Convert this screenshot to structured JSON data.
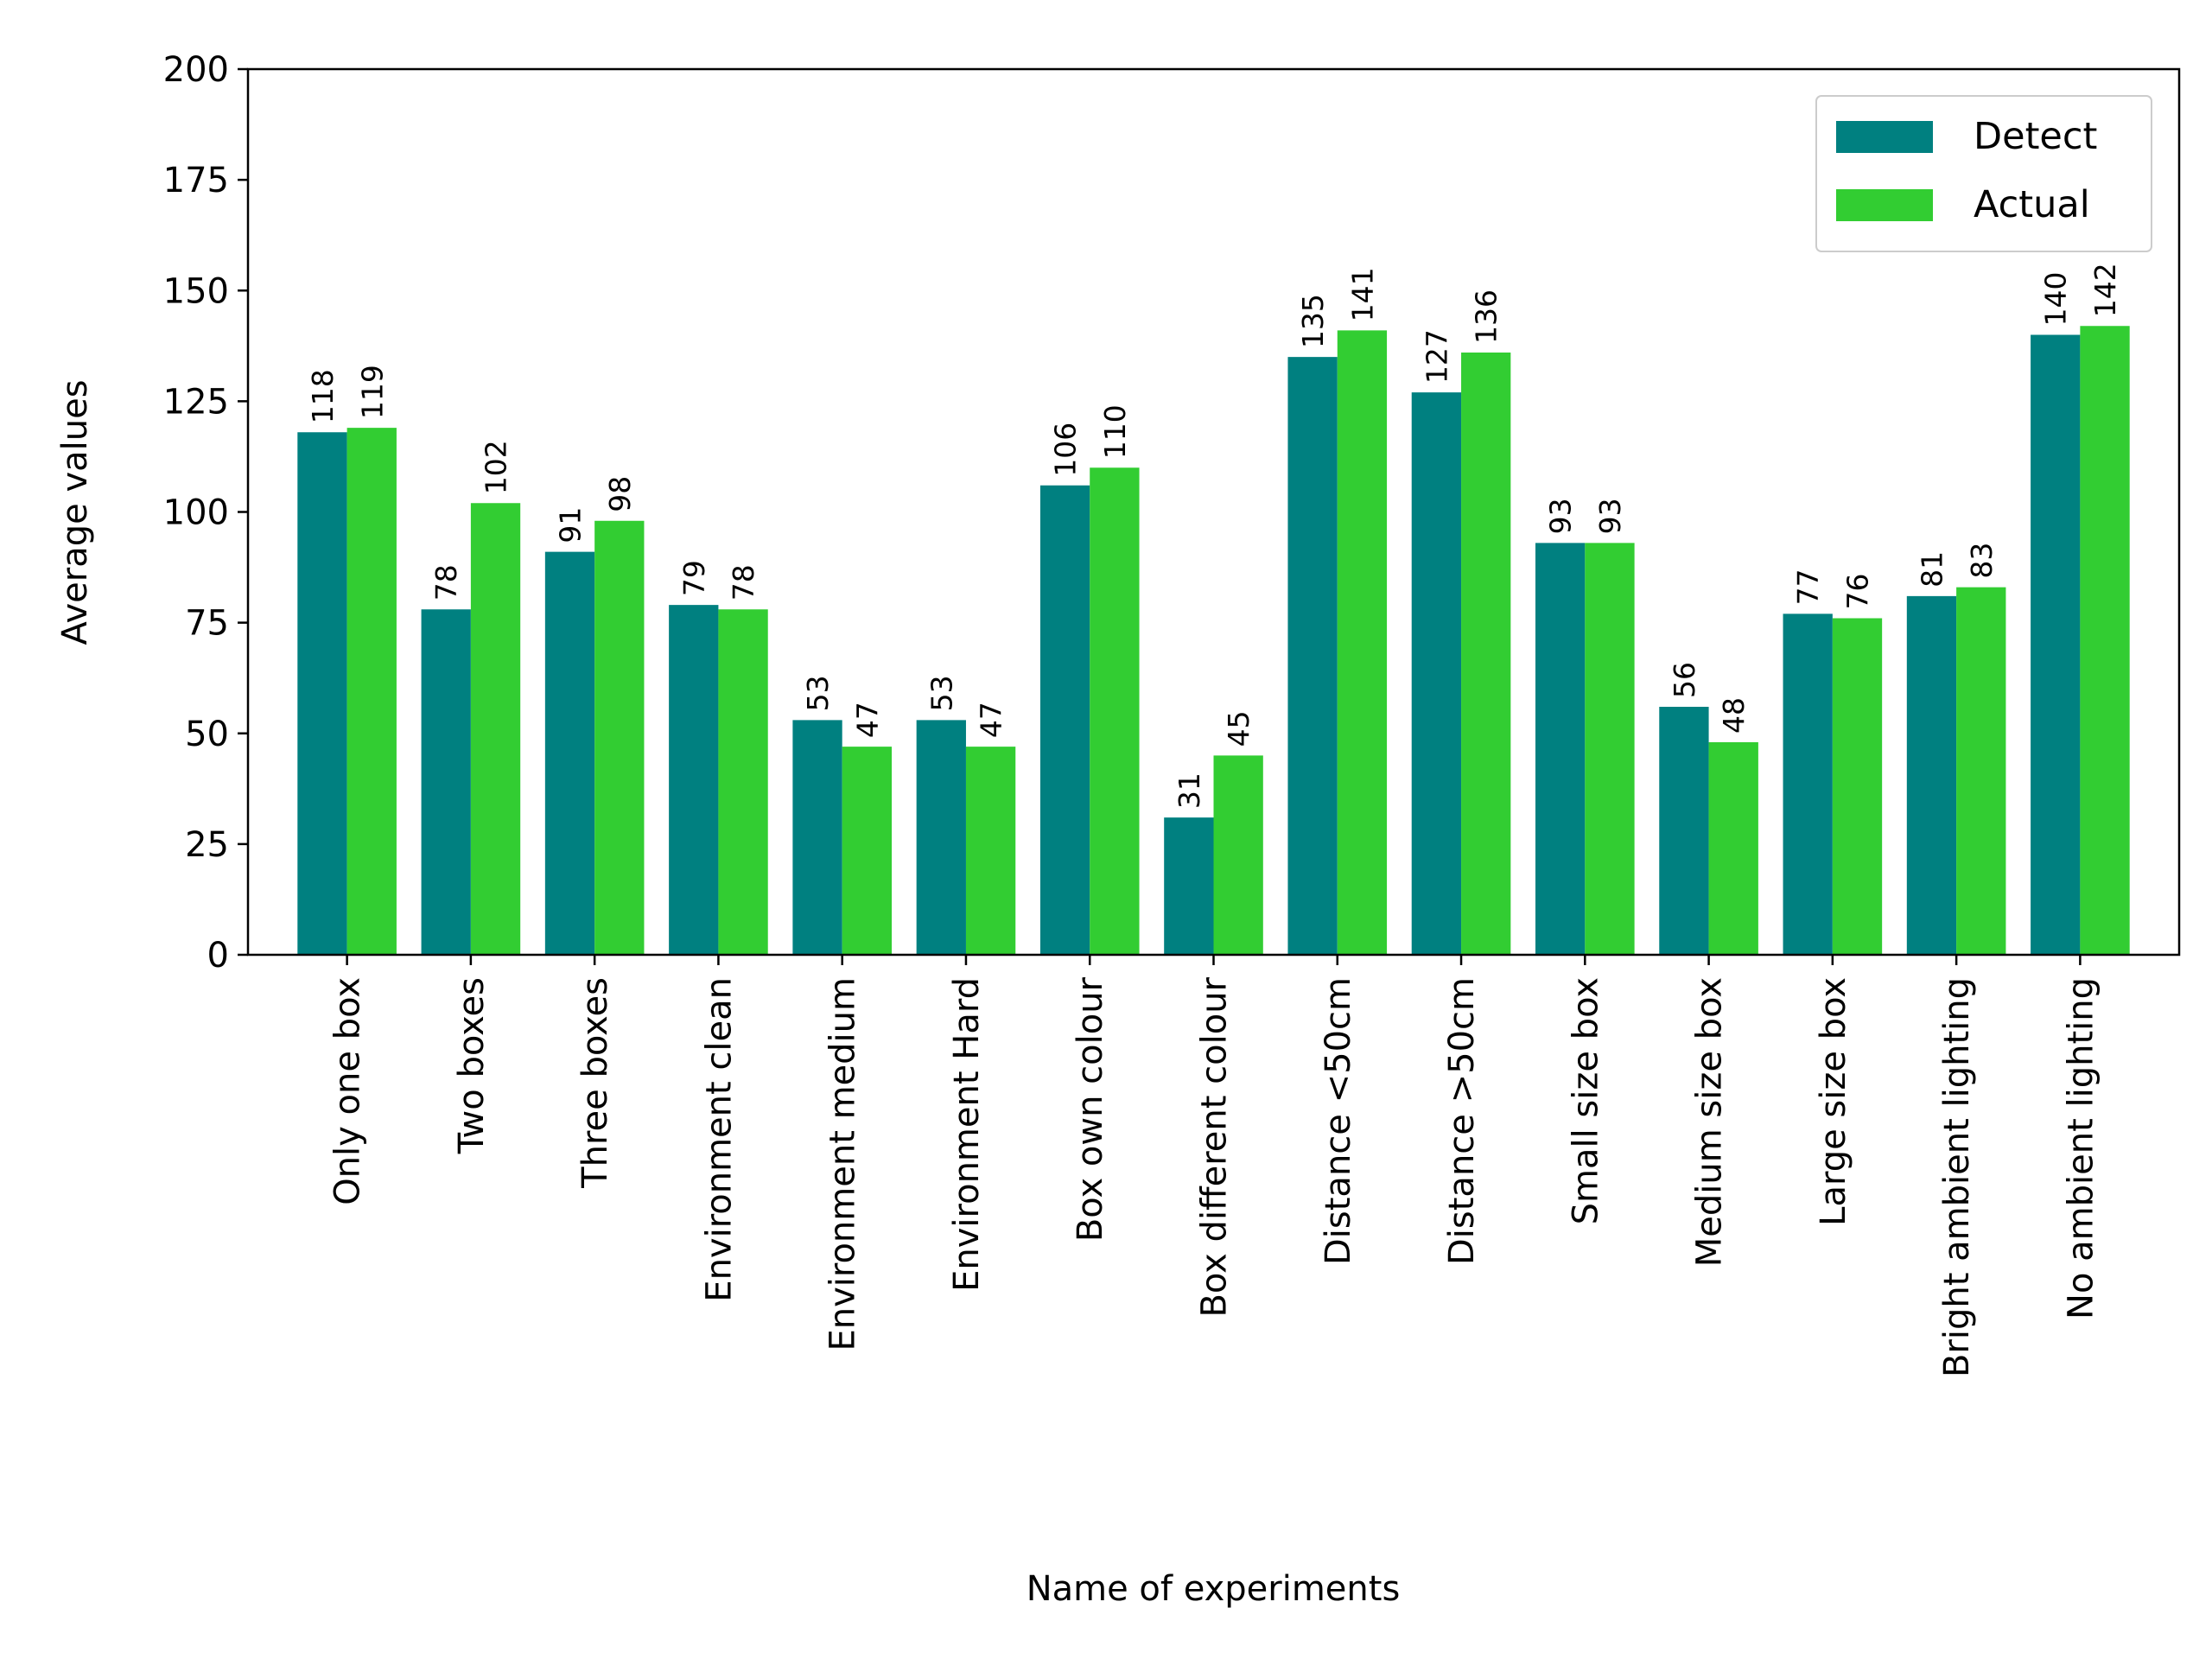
{
  "chart_data": {
    "type": "bar",
    "title": "",
    "xlabel": "Name of experiments",
    "ylabel": "Average values",
    "ylim": [
      0,
      200
    ],
    "yticks": [
      0,
      25,
      50,
      75,
      100,
      125,
      150,
      175,
      200
    ],
    "grid": false,
    "legend_position": "top-right",
    "categories": [
      "Only one box",
      "Two boxes",
      "Three boxes",
      "Environment clean",
      "Environment medium",
      "Environment Hard",
      "Box own colour",
      "Box different colour",
      "Distance <50cm",
      "Distance >50cm",
      "Small size box",
      "Medium size box",
      "Large size box",
      "Bright ambient lighting",
      "No ambient lighting"
    ],
    "series": [
      {
        "name": "Detect",
        "color": "#008080",
        "values": [
          118,
          78,
          91,
          79,
          53,
          53,
          106,
          31,
          135,
          127,
          93,
          56,
          77,
          81,
          140
        ]
      },
      {
        "name": "Actual",
        "color": "#32cd32",
        "values": [
          119,
          102,
          98,
          78,
          47,
          47,
          110,
          45,
          141,
          136,
          93,
          48,
          76,
          83,
          142
        ]
      }
    ]
  }
}
